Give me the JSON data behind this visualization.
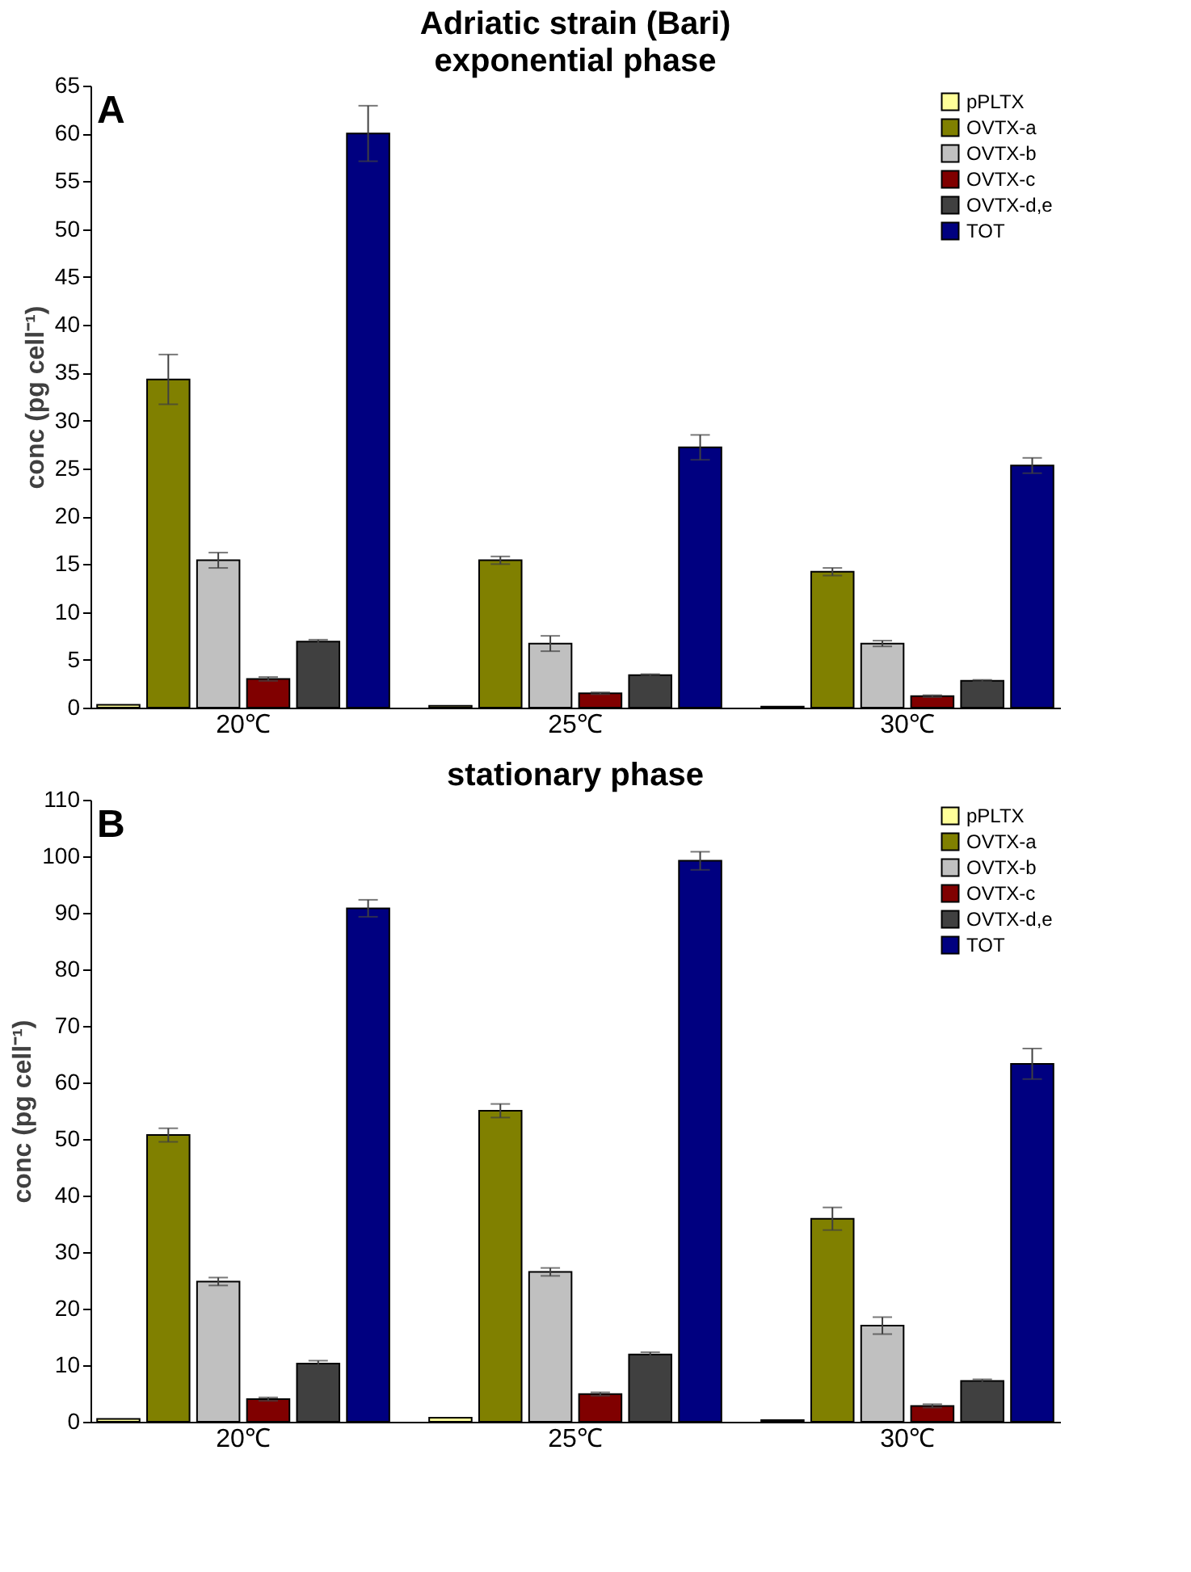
{
  "chart_data": [
    {
      "type": "bar",
      "title": "Adriatic strain (Bari)",
      "subtitle": "exponential phase",
      "ylabel": "conc (pg cell⁻¹)",
      "annotations": [
        "A"
      ],
      "categories": [
        "20℃",
        "25℃",
        "30℃"
      ],
      "series": [
        {
          "name": "pPLTX",
          "color": "#ffff99",
          "values": [
            0.3,
            0.2,
            0.1
          ]
        },
        {
          "name": "OVTX-a",
          "color": "#808000",
          "values": [
            34.3,
            15.4,
            14.2
          ],
          "errors": [
            2.6,
            0.4,
            0.4
          ]
        },
        {
          "name": "OVTX-b",
          "color": "#c0c0c0",
          "values": [
            15.4,
            6.7,
            6.7
          ],
          "errors": [
            0.8,
            0.8,
            0.3
          ]
        },
        {
          "name": "OVTX-c",
          "color": "#800000",
          "values": [
            3.0,
            1.5,
            1.2
          ],
          "errors": [
            0.2,
            0.1,
            0.1
          ]
        },
        {
          "name": "OVTX-d,e",
          "color": "#404040",
          "values": [
            6.9,
            3.4,
            2.8
          ],
          "errors": [
            0.2,
            0.1,
            0.1
          ]
        },
        {
          "name": "TOT",
          "color": "#000080",
          "values": [
            60.0,
            27.2,
            25.3
          ],
          "errors": [
            2.9,
            1.3,
            0.8
          ]
        }
      ],
      "ylim": [
        0,
        65
      ],
      "yticks": [
        0,
        5,
        10,
        15,
        20,
        25,
        30,
        35,
        40,
        45,
        50,
        55,
        60,
        65
      ],
      "grid": false,
      "legend": "top right"
    },
    {
      "type": "bar",
      "title": "stationary phase",
      "ylabel": "conc (pg cell⁻¹)",
      "annotations": [
        "B"
      ],
      "categories": [
        "20℃",
        "25℃",
        "30℃"
      ],
      "series": [
        {
          "name": "pPLTX",
          "color": "#ffff99",
          "values": [
            0.5,
            0.7,
            0.3
          ]
        },
        {
          "name": "OVTX-a",
          "color": "#808000",
          "values": [
            50.7,
            55.0,
            35.9
          ],
          "errors": [
            1.2,
            1.2,
            2.0
          ]
        },
        {
          "name": "OVTX-b",
          "color": "#c0c0c0",
          "values": [
            24.8,
            26.5,
            17.0
          ],
          "errors": [
            0.7,
            0.7,
            1.5
          ]
        },
        {
          "name": "OVTX-c",
          "color": "#800000",
          "values": [
            4.0,
            4.9,
            2.8
          ],
          "errors": [
            0.3,
            0.3,
            0.3
          ]
        },
        {
          "name": "OVTX-d,e",
          "color": "#404040",
          "values": [
            10.3,
            11.9,
            7.2
          ],
          "errors": [
            0.5,
            0.4,
            0.3
          ]
        },
        {
          "name": "TOT",
          "color": "#000080",
          "values": [
            90.8,
            99.2,
            63.3
          ],
          "errors": [
            1.5,
            1.6,
            2.7
          ]
        }
      ],
      "ylim": [
        0,
        110
      ],
      "yticks": [
        0,
        10,
        20,
        30,
        40,
        50,
        60,
        70,
        80,
        90,
        100,
        110
      ],
      "grid": false,
      "legend": "top right"
    }
  ]
}
